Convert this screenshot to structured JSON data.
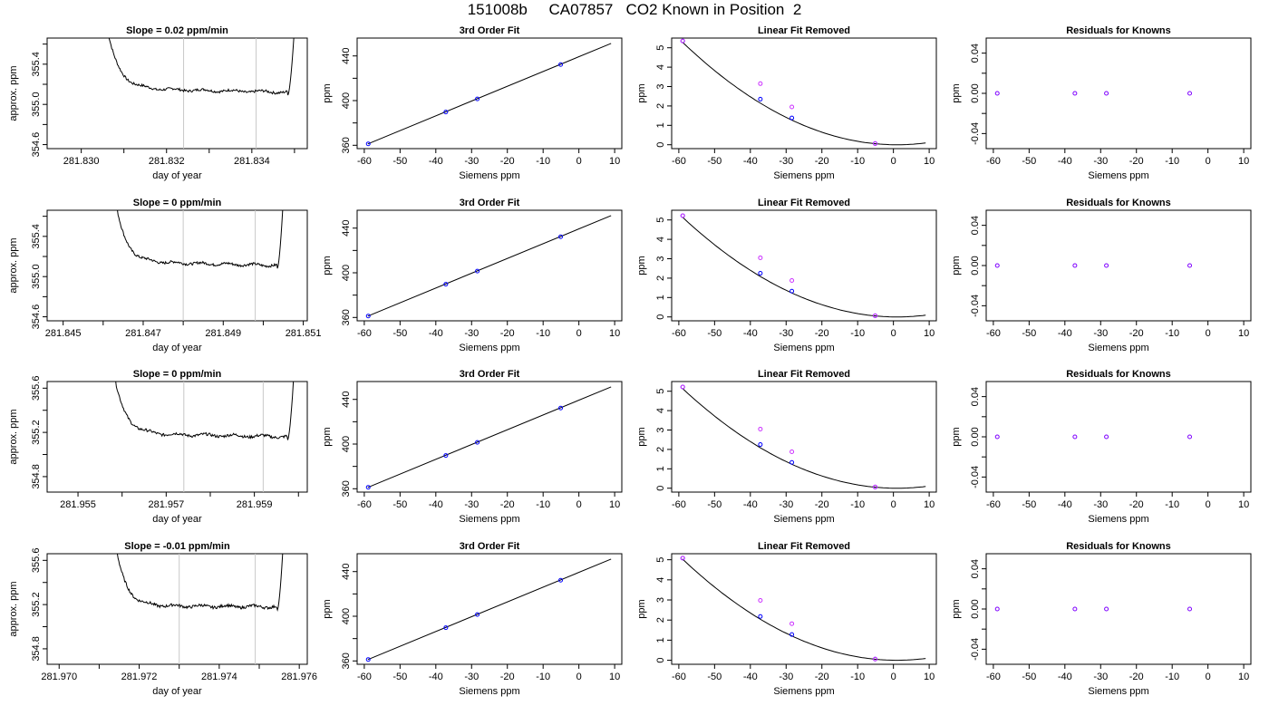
{
  "page_title": "151008b     CA07857   CO2 Known in Position  2",
  "colors": {
    "line": "#000000",
    "window_line": "#c8c8c8",
    "blue_points": "#0000ff",
    "magenta_points": "#cc33ff",
    "purple_points": "#7f00ff",
    "red_point": "#ff0000"
  },
  "chart_data": [
    {
      "type": "line",
      "row": 0,
      "col": 0,
      "title": "Slope =  0.02  ppm/min",
      "xlabel": "day of year",
      "ylabel": "approx. ppm",
      "xlim": [
        281.8292,
        281.8353
      ],
      "ylim": [
        354.56,
        355.66
      ],
      "xticks": [
        281.83,
        281.831,
        281.832,
        281.833,
        281.834,
        281.835
      ],
      "xtick_labels": [
        "281.830",
        "",
        "281.832",
        "",
        "281.834",
        ""
      ],
      "yticks": [
        354.6,
        354.8,
        355.0,
        355.2,
        355.4,
        355.6
      ],
      "ytick_labels": [
        "354.6",
        "",
        "355.0",
        "",
        "355.4",
        ""
      ],
      "window": [
        281.8324,
        281.8341
      ],
      "series": [
        {
          "values_shape": "settling",
          "x_start": 281.8306,
          "x_end": 281.835,
          "baseline_start": 355.16,
          "baseline_end": 355.12
        }
      ]
    },
    {
      "type": "line",
      "row": 1,
      "col": 0,
      "title": "Slope =  0  ppm/min",
      "xlabel": "day of year",
      "ylabel": "approx. ppm",
      "xlim": [
        281.8446,
        281.8511
      ],
      "ylim": [
        354.56,
        355.66
      ],
      "xticks": [
        281.845,
        281.846,
        281.847,
        281.848,
        281.849,
        281.85,
        281.851
      ],
      "xtick_labels": [
        "281.845",
        "",
        "281.847",
        "",
        "281.849",
        "",
        "281.851"
      ],
      "yticks": [
        354.6,
        354.8,
        355.0,
        355.2,
        355.4,
        355.6
      ],
      "ytick_labels": [
        "354.6",
        "",
        "355.0",
        "",
        "355.4",
        ""
      ],
      "window": [
        281.848,
        281.8498
      ],
      "series": [
        {
          "values_shape": "settling",
          "x_start": 281.8463,
          "x_end": 281.8505,
          "baseline_start": 355.15,
          "baseline_end": 355.11
        }
      ]
    },
    {
      "type": "line",
      "row": 2,
      "col": 0,
      "title": "Slope =  0  ppm/min",
      "xlabel": "day of year",
      "ylabel": "approx. ppm",
      "xlim": [
        281.9543,
        281.9602
      ],
      "ylim": [
        354.66,
        355.66
      ],
      "xticks": [
        281.955,
        281.956,
        281.957,
        281.958,
        281.959,
        281.96
      ],
      "xtick_labels": [
        "281.955",
        "",
        "281.957",
        "",
        "281.959",
        ""
      ],
      "yticks": [
        354.8,
        355.0,
        355.2,
        355.4,
        355.6
      ],
      "ytick_labels": [
        "354.8",
        "",
        "355.2",
        "",
        "355.6"
      ],
      "window": [
        281.9574,
        281.9592
      ],
      "series": [
        {
          "values_shape": "settling",
          "x_start": 281.9558,
          "x_end": 281.9599,
          "baseline_start": 355.19,
          "baseline_end": 355.16
        }
      ]
    },
    {
      "type": "line",
      "row": 3,
      "col": 0,
      "title": "Slope =  -0.01  ppm/min",
      "xlabel": "day of year",
      "ylabel": "approx. ppm",
      "xlim": [
        281.9697,
        281.9762
      ],
      "ylim": [
        354.66,
        355.66
      ],
      "xticks": [
        281.97,
        281.971,
        281.972,
        281.973,
        281.974,
        281.975,
        281.976
      ],
      "xtick_labels": [
        "281.970",
        "",
        "281.972",
        "",
        "281.974",
        "",
        "281.976"
      ],
      "yticks": [
        354.8,
        355.0,
        355.2,
        355.4,
        355.6
      ],
      "ytick_labels": [
        "354.8",
        "",
        "355.2",
        "",
        "355.6"
      ],
      "window": [
        281.973,
        281.9749
      ],
      "series": [
        {
          "values_shape": "settling",
          "x_start": 281.9714,
          "x_end": 281.9756,
          "baseline_start": 355.19,
          "baseline_end": 355.18
        }
      ]
    },
    {
      "type": "scatter",
      "row": 0,
      "col": 1,
      "title": "3rd Order Fit",
      "xlabel": "Siemens ppm",
      "ylabel": "ppm",
      "xlim": [
        -62,
        12
      ],
      "ylim": [
        357,
        456
      ],
      "xticks": [
        -60,
        -50,
        -40,
        -30,
        -20,
        -10,
        0,
        10
      ],
      "xtick_labels": [
        "-60",
        "-50",
        "-40",
        "-30",
        "-20",
        "-10",
        "0",
        "10"
      ],
      "yticks": [
        360,
        380,
        400,
        420,
        440
      ],
      "ytick_labels": [
        "360",
        "",
        "400",
        "",
        "440"
      ],
      "fit_line": {
        "x": [
          -59,
          9
        ],
        "y": [
          361.2,
          451.2
        ]
      },
      "points": {
        "x": [
          -58.9,
          -37.2,
          -28.4,
          -5.1
        ],
        "y": [
          361.3,
          389.8,
          401.5,
          432.3
        ]
      }
    },
    {
      "type": "scatter",
      "row": 1,
      "col": 1,
      "title": "3rd Order Fit",
      "xlabel": "Siemens ppm",
      "ylabel": "ppm",
      "xlim": [
        -62,
        12
      ],
      "ylim": [
        357,
        456
      ],
      "xticks": [
        -60,
        -50,
        -40,
        -30,
        -20,
        -10,
        0,
        10
      ],
      "xtick_labels": [
        "-60",
        "-50",
        "-40",
        "-30",
        "-20",
        "-10",
        "0",
        "10"
      ],
      "yticks": [
        360,
        380,
        400,
        420,
        440
      ],
      "ytick_labels": [
        "360",
        "",
        "400",
        "",
        "440"
      ],
      "fit_line": {
        "x": [
          -59,
          9
        ],
        "y": [
          361.2,
          451.2
        ]
      },
      "points": {
        "x": [
          -58.9,
          -37.2,
          -28.4,
          -5.1
        ],
        "y": [
          361.3,
          389.8,
          401.5,
          432.3
        ]
      }
    },
    {
      "type": "scatter",
      "row": 2,
      "col": 1,
      "title": "3rd Order Fit",
      "xlabel": "Siemens ppm",
      "ylabel": "ppm",
      "xlim": [
        -62,
        12
      ],
      "ylim": [
        357,
        456
      ],
      "xticks": [
        -60,
        -50,
        -40,
        -30,
        -20,
        -10,
        0,
        10
      ],
      "xtick_labels": [
        "-60",
        "-50",
        "-40",
        "-30",
        "-20",
        "-10",
        "0",
        "10"
      ],
      "yticks": [
        360,
        380,
        400,
        420,
        440
      ],
      "ytick_labels": [
        "360",
        "",
        "400",
        "",
        "440"
      ],
      "fit_line": {
        "x": [
          -59,
          9
        ],
        "y": [
          361.2,
          451.2
        ]
      },
      "points": {
        "x": [
          -58.9,
          -37.2,
          -28.4,
          -5.1
        ],
        "y": [
          361.3,
          389.8,
          401.5,
          432.3
        ]
      }
    },
    {
      "type": "scatter",
      "row": 3,
      "col": 1,
      "title": "3rd Order Fit",
      "xlabel": "Siemens ppm",
      "ylabel": "ppm",
      "xlim": [
        -62,
        12
      ],
      "ylim": [
        357,
        456
      ],
      "xticks": [
        -60,
        -50,
        -40,
        -30,
        -20,
        -10,
        0,
        10
      ],
      "xtick_labels": [
        "-60",
        "-50",
        "-40",
        "-30",
        "-20",
        "-10",
        "0",
        "10"
      ],
      "yticks": [
        360,
        380,
        400,
        420,
        440
      ],
      "ytick_labels": [
        "360",
        "",
        "400",
        "",
        "440"
      ],
      "fit_line": {
        "x": [
          -59,
          9
        ],
        "y": [
          361.2,
          451.2
        ]
      },
      "points": {
        "x": [
          -58.9,
          -37.2,
          -28.4,
          -5.1
        ],
        "y": [
          361.3,
          389.8,
          401.5,
          432.3
        ]
      }
    },
    {
      "type": "scatter",
      "row": 0,
      "col": 2,
      "title": "Linear Fit Removed",
      "xlabel": "Siemens ppm",
      "ylabel": "ppm",
      "xlim": [
        -62,
        12
      ],
      "ylim": [
        -0.2,
        5.5
      ],
      "xticks": [
        -60,
        -50,
        -40,
        -30,
        -20,
        -10,
        0,
        10
      ],
      "xtick_labels": [
        "-60",
        "-50",
        "-40",
        "-30",
        "-20",
        "-10",
        "0",
        "10"
      ],
      "yticks": [
        0,
        1,
        2,
        3,
        4,
        5
      ],
      "ytick_labels": [
        "0",
        "1",
        "2",
        "3",
        "4",
        "5"
      ],
      "curve": {
        "vertex_x": 1,
        "coef": 0.00147,
        "x_from": -59,
        "x_to": 9
      },
      "series": [
        {
          "values_x": [
            -58.9,
            -37.2,
            -28.4,
            -5.1
          ],
          "values_y": [
            5.35,
            2.35,
            1.38,
            0.06
          ],
          "color": "#0000ff"
        },
        {
          "values_x": [
            -58.9,
            -37.2,
            -28.4,
            -5.1
          ],
          "values_y": [
            5.35,
            3.15,
            1.95,
            0.06
          ],
          "color": "#cc33ff"
        }
      ]
    },
    {
      "type": "scatter",
      "row": 1,
      "col": 2,
      "title": "Linear Fit Removed",
      "xlabel": "Siemens ppm",
      "ylabel": "ppm",
      "xlim": [
        -62,
        12
      ],
      "ylim": [
        -0.2,
        5.5
      ],
      "xticks": [
        -60,
        -50,
        -40,
        -30,
        -20,
        -10,
        0,
        10
      ],
      "xtick_labels": [
        "-60",
        "-50",
        "-40",
        "-30",
        "-20",
        "-10",
        "0",
        "10"
      ],
      "yticks": [
        0,
        1,
        2,
        3,
        4,
        5
      ],
      "ytick_labels": [
        "0",
        "1",
        "2",
        "3",
        "4",
        "5"
      ],
      "curve": {
        "vertex_x": 1,
        "coef": 0.00143,
        "x_from": -59,
        "x_to": 9
      },
      "series": [
        {
          "values_x": [
            -58.9,
            -37.2,
            -28.4,
            -5.1
          ],
          "values_y": [
            5.22,
            2.25,
            1.33,
            0.06
          ],
          "color": "#0000ff"
        },
        {
          "values_x": [
            -58.9,
            -37.2,
            -28.4,
            -5.1
          ],
          "values_y": [
            5.22,
            3.05,
            1.88,
            0.06
          ],
          "color": "#cc33ff"
        }
      ]
    },
    {
      "type": "scatter",
      "row": 2,
      "col": 2,
      "title": "Linear Fit Removed",
      "xlabel": "Siemens ppm",
      "ylabel": "ppm",
      "xlim": [
        -62,
        12
      ],
      "ylim": [
        -0.2,
        5.5
      ],
      "xticks": [
        -60,
        -50,
        -40,
        -30,
        -20,
        -10,
        0,
        10
      ],
      "xtick_labels": [
        "-60",
        "-50",
        "-40",
        "-30",
        "-20",
        "-10",
        "0",
        "10"
      ],
      "yticks": [
        0,
        1,
        2,
        3,
        4,
        5
      ],
      "ytick_labels": [
        "0",
        "1",
        "2",
        "3",
        "4",
        "5"
      ],
      "curve": {
        "vertex_x": 1,
        "coef": 0.00143,
        "x_from": -59,
        "x_to": 9
      },
      "series": [
        {
          "values_x": [
            -58.9,
            -37.2,
            -28.4,
            -5.1
          ],
          "values_y": [
            5.22,
            2.25,
            1.33,
            0.06
          ],
          "color": "#0000ff"
        },
        {
          "values_x": [
            -58.9,
            -37.2,
            -28.4,
            -5.1
          ],
          "values_y": [
            5.22,
            3.05,
            1.88,
            0.06
          ],
          "color": "#cc33ff"
        }
      ]
    },
    {
      "type": "scatter",
      "row": 3,
      "col": 2,
      "title": "Linear Fit Removed",
      "xlabel": "Siemens ppm",
      "ylabel": "ppm",
      "xlim": [
        -62,
        12
      ],
      "ylim": [
        -0.2,
        5.3
      ],
      "xticks": [
        -60,
        -50,
        -40,
        -30,
        -20,
        -10,
        0,
        10
      ],
      "xtick_labels": [
        "-60",
        "-50",
        "-40",
        "-30",
        "-20",
        "-10",
        "0",
        "10"
      ],
      "yticks": [
        0,
        1,
        2,
        3,
        4,
        5
      ],
      "ytick_labels": [
        "0",
        "1",
        "2",
        "3",
        "4",
        "5"
      ],
      "curve": {
        "vertex_x": 1,
        "coef": 0.0014,
        "x_from": -59,
        "x_to": 9
      },
      "series": [
        {
          "values_x": [
            -58.9,
            -37.2,
            -28.4,
            -5.1
          ],
          "values_y": [
            5.08,
            2.18,
            1.28,
            0.06
          ],
          "color": "#0000ff"
        },
        {
          "values_x": [
            -58.9,
            -37.2,
            -28.4,
            -5.1
          ],
          "values_y": [
            5.08,
            2.98,
            1.82,
            0.06
          ],
          "color": "#cc33ff"
        }
      ]
    },
    {
      "type": "scatter",
      "row": 0,
      "col": 3,
      "title": "Residuals for Knowns",
      "xlabel": "Siemens ppm",
      "ylabel": "ppm",
      "xlim": [
        -62,
        12
      ],
      "ylim": [
        -0.055,
        0.055
      ],
      "xticks": [
        -60,
        -50,
        -40,
        -30,
        -20,
        -10,
        0,
        10
      ],
      "xtick_labels": [
        "-60",
        "-50",
        "-40",
        "-30",
        "-20",
        "-10",
        "0",
        "10"
      ],
      "yticks": [
        -0.04,
        -0.02,
        0.0,
        0.02,
        0.04
      ],
      "ytick_labels": [
        "-0.04",
        "",
        "0.00",
        "",
        "0.04"
      ],
      "points": {
        "x": [
          -58.9,
          -37.2,
          -28.4,
          -5.1
        ],
        "y": [
          0,
          0,
          0,
          0
        ]
      }
    },
    {
      "type": "scatter",
      "row": 1,
      "col": 3,
      "title": "Residuals for Knowns",
      "xlabel": "Siemens ppm",
      "ylabel": "ppm",
      "xlim": [
        -62,
        12
      ],
      "ylim": [
        -0.055,
        0.055
      ],
      "xticks": [
        -60,
        -50,
        -40,
        -30,
        -20,
        -10,
        0,
        10
      ],
      "xtick_labels": [
        "-60",
        "-50",
        "-40",
        "-30",
        "-20",
        "-10",
        "0",
        "10"
      ],
      "yticks": [
        -0.04,
        -0.02,
        0.0,
        0.02,
        0.04
      ],
      "ytick_labels": [
        "-0.04",
        "",
        "0.00",
        "",
        "0.04"
      ],
      "points": {
        "x": [
          -58.9,
          -37.2,
          -28.4,
          -5.1
        ],
        "y": [
          0,
          0,
          0,
          0
        ]
      }
    },
    {
      "type": "scatter",
      "row": 2,
      "col": 3,
      "title": "Residuals for Knowns",
      "xlabel": "Siemens ppm",
      "ylabel": "ppm",
      "xlim": [
        -62,
        12
      ],
      "ylim": [
        -0.055,
        0.055
      ],
      "xticks": [
        -60,
        -50,
        -40,
        -30,
        -20,
        -10,
        0,
        10
      ],
      "xtick_labels": [
        "-60",
        "-50",
        "-40",
        "-30",
        "-20",
        "-10",
        "0",
        "10"
      ],
      "yticks": [
        -0.04,
        -0.02,
        0.0,
        0.02,
        0.04
      ],
      "ytick_labels": [
        "-0.04",
        "",
        "0.00",
        "",
        "0.04"
      ],
      "points": {
        "x": [
          -58.9,
          -37.2,
          -28.4,
          -5.1
        ],
        "y": [
          0,
          0,
          0,
          0
        ]
      }
    },
    {
      "type": "scatter",
      "row": 3,
      "col": 3,
      "title": "Residuals for Knowns",
      "xlabel": "Siemens ppm",
      "ylabel": "ppm",
      "xlim": [
        -62,
        12
      ],
      "ylim": [
        -0.055,
        0.055
      ],
      "xticks": [
        -60,
        -50,
        -40,
        -30,
        -20,
        -10,
        0,
        10
      ],
      "xtick_labels": [
        "-60",
        "-50",
        "-40",
        "-30",
        "-20",
        "-10",
        "0",
        "10"
      ],
      "yticks": [
        -0.04,
        -0.02,
        0.0,
        0.02,
        0.04
      ],
      "ytick_labels": [
        "-0.04",
        "",
        "0.00",
        "",
        "0.04"
      ],
      "points": {
        "x": [
          -58.9,
          -37.2,
          -28.4,
          -5.1
        ],
        "y": [
          0,
          0,
          0,
          0
        ]
      }
    }
  ]
}
